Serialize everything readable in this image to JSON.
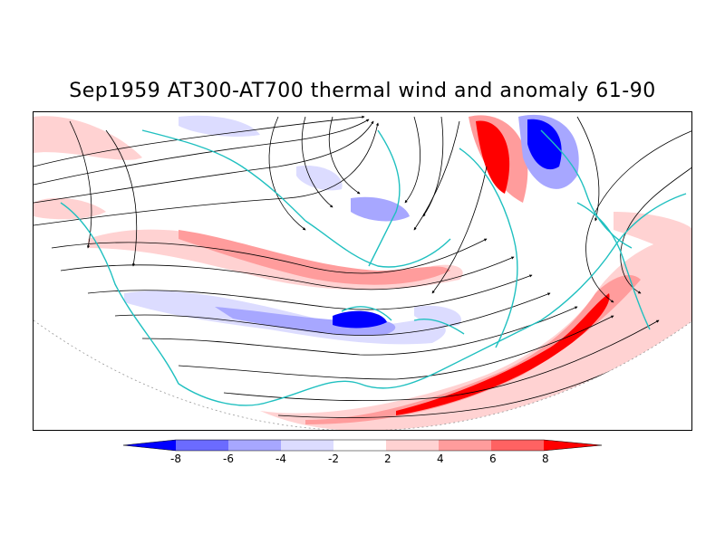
{
  "title": "Sep1959 AT300-AT700 thermal wind and anomaly 61-90",
  "colorbar": {
    "labels": [
      "-8",
      "-6",
      "-4",
      "-2",
      "2",
      "4",
      "6",
      "8"
    ],
    "colors": [
      "#0000ff",
      "#6b6bff",
      "#a7a7ff",
      "#dcdcff",
      "#ffffff",
      "#ffd2d2",
      "#ff9c9c",
      "#ff6262",
      "#ff0000"
    ]
  },
  "map": {
    "land_outline_color": "#20c0c0",
    "streamline_color": "#000000"
  }
}
